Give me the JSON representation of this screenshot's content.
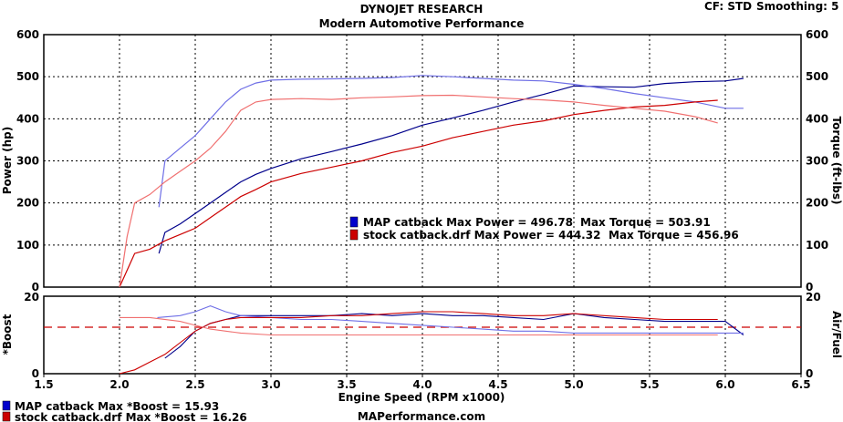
{
  "header": {
    "title": "DYNOJET RESEARCH",
    "subtitle": "Modern Automotive Performance",
    "cf_label": "CF: STD",
    "smoothing_label": "Smoothing: 5",
    "website": "MAPerformance.com"
  },
  "colors": {
    "map_strong": "#00008b",
    "map_light": "#6f6fe6",
    "stock_strong": "#cc0000",
    "stock_light": "#f07070",
    "target_line": "#cc0000"
  },
  "chart_data": [
    {
      "type": "line",
      "title": "",
      "xlabel": "Engine Speed (RPM x1000)",
      "ylabel": "Power (hp)",
      "ylabel_right": "Torque (ft-lbs)",
      "xlim": [
        1.5,
        6.5
      ],
      "ylim": [
        0,
        600
      ],
      "ylim_right": [
        0,
        600
      ],
      "x_ticks": [
        "1.5",
        "2.0",
        "2.5",
        "3.0",
        "3.5",
        "4.0",
        "4.5",
        "5.0",
        "5.5",
        "6.0",
        "6.5"
      ],
      "y_ticks": [
        "0",
        "100",
        "200",
        "300",
        "400",
        "500",
        "600"
      ],
      "grid": true,
      "legend": {
        "placement": "center-right",
        "entries": [
          {
            "text": "MAP catback Max Power = 496.78",
            "torque_text": "Max Torque = 503.91",
            "color": "#0000cc"
          },
          {
            "text": "stock catback.drf Max Power = 444.32",
            "torque_text": "Max Torque = 456.96",
            "color": "#cc0000"
          }
        ]
      },
      "series": [
        {
          "name": "MAP catback",
          "kind": "power",
          "x": [
            2.26,
            2.3,
            2.4,
            2.5,
            2.6,
            2.7,
            2.8,
            2.9,
            3.0,
            3.2,
            3.4,
            3.6,
            3.8,
            4.0,
            4.2,
            4.4,
            4.6,
            4.8,
            5.0,
            5.2,
            5.4,
            5.6,
            5.8,
            6.0,
            6.12
          ],
          "y": [
            80,
            130,
            150,
            175,
            200,
            225,
            250,
            268,
            282,
            305,
            322,
            340,
            360,
            385,
            402,
            420,
            440,
            458,
            478,
            476,
            475,
            484,
            488,
            490,
            496
          ]
        },
        {
          "name": "MAP catback",
          "kind": "torque",
          "x": [
            2.26,
            2.3,
            2.4,
            2.5,
            2.6,
            2.7,
            2.8,
            2.9,
            3.0,
            3.2,
            3.4,
            3.6,
            3.8,
            4.0,
            4.2,
            4.4,
            4.6,
            4.8,
            5.0,
            5.2,
            5.4,
            5.6,
            5.8,
            6.0,
            6.12
          ],
          "y": [
            190,
            300,
            330,
            360,
            400,
            440,
            470,
            485,
            492,
            494,
            495,
            496,
            498,
            503,
            500,
            496,
            492,
            490,
            482,
            472,
            460,
            450,
            440,
            425,
            425
          ]
        },
        {
          "name": "stock catback.drf",
          "kind": "power",
          "x": [
            2.0,
            2.1,
            2.2,
            2.3,
            2.4,
            2.5,
            2.6,
            2.7,
            2.8,
            2.9,
            3.0,
            3.2,
            3.4,
            3.6,
            3.8,
            4.0,
            4.2,
            4.4,
            4.6,
            4.8,
            5.0,
            5.2,
            5.4,
            5.6,
            5.8,
            5.95
          ],
          "y": [
            0,
            80,
            90,
            110,
            125,
            140,
            165,
            190,
            215,
            232,
            250,
            270,
            285,
            300,
            320,
            335,
            355,
            370,
            385,
            395,
            410,
            420,
            428,
            432,
            440,
            444
          ]
        },
        {
          "name": "stock catback.drf",
          "kind": "torque",
          "x": [
            2.0,
            2.05,
            2.1,
            2.2,
            2.3,
            2.4,
            2.5,
            2.6,
            2.7,
            2.8,
            2.9,
            3.0,
            3.2,
            3.4,
            3.6,
            3.8,
            4.0,
            4.2,
            4.4,
            4.6,
            4.8,
            5.0,
            5.2,
            5.4,
            5.6,
            5.8,
            5.95
          ],
          "y": [
            0,
            120,
            200,
            220,
            250,
            275,
            300,
            330,
            370,
            420,
            440,
            446,
            448,
            446,
            450,
            452,
            455,
            456,
            452,
            448,
            445,
            440,
            432,
            425,
            418,
            405,
            390
          ]
        }
      ]
    },
    {
      "type": "line",
      "title": "",
      "xlabel": "Engine Speed (RPM x1000)",
      "ylabel": "*Boost",
      "ylabel_right": "Air/Fuel",
      "xlim": [
        1.5,
        6.5
      ],
      "ylim": [
        0,
        20
      ],
      "y_ticks": [
        "0",
        "20"
      ],
      "y_ticks_right": [
        "0",
        "20"
      ],
      "reference_line": {
        "y": 12,
        "style": "dashed"
      },
      "legend": {
        "placement": "bottom-left",
        "entries": [
          {
            "text": "MAP catback Max *Boost = 15.93",
            "color": "#0000cc"
          },
          {
            "text": "stock catback.drf Max *Boost = 16.26",
            "color": "#cc0000"
          }
        ]
      },
      "series": [
        {
          "name": "MAP catback",
          "kind": "boost",
          "x": [
            2.3,
            2.4,
            2.5,
            2.6,
            2.7,
            2.8,
            3.0,
            3.2,
            3.4,
            3.6,
            3.8,
            4.0,
            4.2,
            4.4,
            4.6,
            4.8,
            5.0,
            5.2,
            5.4,
            5.6,
            5.8,
            6.0,
            6.12
          ],
          "y": [
            4,
            7,
            11,
            13,
            14,
            15,
            15,
            15,
            15,
            15.5,
            15,
            15.5,
            15,
            15,
            14.5,
            14,
            15.5,
            14.5,
            14,
            13.5,
            13.5,
            13.5,
            10
          ]
        },
        {
          "name": "MAP catback",
          "kind": "air_fuel",
          "x": [
            2.25,
            2.4,
            2.5,
            2.6,
            2.7,
            2.8,
            3.0,
            3.2,
            3.4,
            3.6,
            3.8,
            4.0,
            4.2,
            4.4,
            4.6,
            4.8,
            5.0,
            5.2,
            5.4,
            5.6,
            5.8,
            6.0,
            6.12
          ],
          "y": [
            14.5,
            15,
            16,
            17.5,
            16,
            15,
            14.5,
            14,
            14,
            13.5,
            13,
            12.5,
            12,
            11.5,
            11,
            11,
            10.5,
            10.5,
            10.5,
            10.5,
            10.5,
            10.5,
            10.5
          ]
        },
        {
          "name": "stock catback.drf",
          "kind": "boost",
          "x": [
            2.0,
            2.1,
            2.2,
            2.3,
            2.4,
            2.5,
            2.6,
            2.7,
            2.8,
            3.0,
            3.2,
            3.4,
            3.6,
            3.8,
            4.0,
            4.2,
            4.4,
            4.6,
            4.8,
            5.0,
            5.2,
            5.4,
            5.6,
            5.8,
            5.95
          ],
          "y": [
            0,
            1,
            3,
            5,
            8,
            11,
            13,
            14,
            14.5,
            14.5,
            14.5,
            15,
            15,
            15.5,
            16,
            16,
            15.5,
            15,
            15,
            15.5,
            15,
            14.5,
            14,
            14,
            14
          ]
        },
        {
          "name": "stock catback.drf",
          "kind": "air_fuel",
          "x": [
            2.0,
            2.2,
            2.4,
            2.5,
            2.6,
            2.8,
            3.0,
            3.5,
            4.0,
            4.5,
            5.0,
            5.5,
            5.95
          ],
          "y": [
            14.5,
            14.5,
            13.5,
            12.5,
            11.5,
            10.5,
            10,
            10,
            10,
            10,
            10,
            10,
            10
          ]
        }
      ]
    }
  ]
}
